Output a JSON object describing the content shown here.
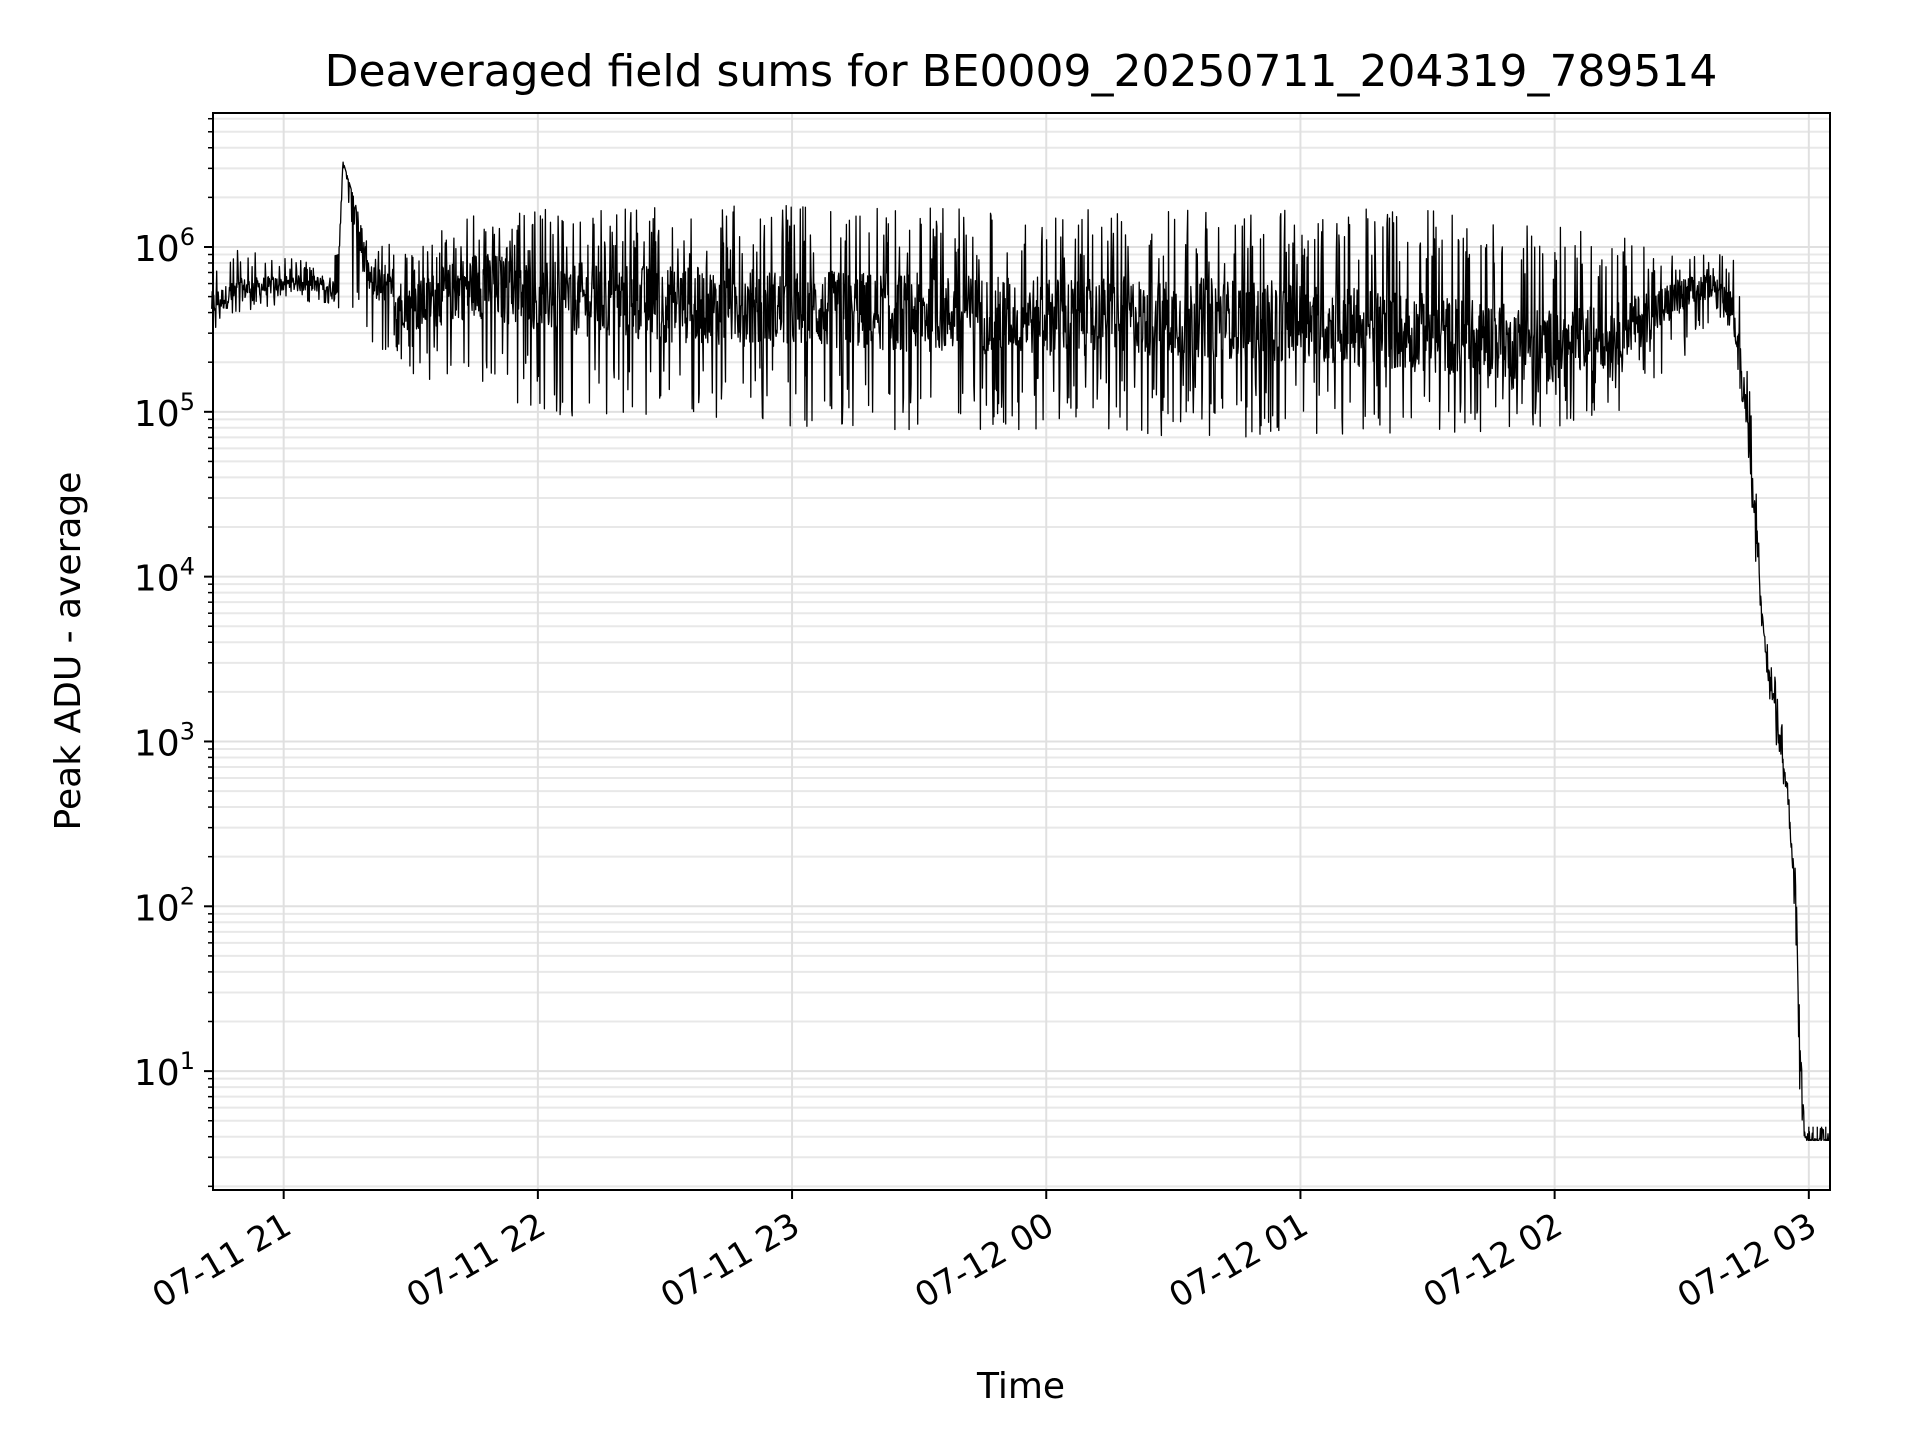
{
  "chart_data": {
    "type": "line",
    "title": "Deaveraged field sums for BE0009_20250711_204319_789514",
    "xlabel": "Time",
    "ylabel": "Peak ADU - average",
    "yscale": "log",
    "ylim": [
      1.9,
      6500000
    ],
    "xlim": [
      "2025-07-11 20:43:19",
      "2025-07-12 03:05:00"
    ],
    "grid": true,
    "line_color": "#000000",
    "x_ticks": [
      {
        "label": "07-11 21",
        "t": "2025-07-11 21:00"
      },
      {
        "label": "07-11 22",
        "t": "2025-07-11 22:00"
      },
      {
        "label": "07-11 23",
        "t": "2025-07-11 23:00"
      },
      {
        "label": "07-12 00",
        "t": "2025-07-12 00:00"
      },
      {
        "label": "07-12 01",
        "t": "2025-07-12 01:00"
      },
      {
        "label": "07-12 02",
        "t": "2025-07-12 02:00"
      },
      {
        "label": "07-12 03",
        "t": "2025-07-12 03:00"
      }
    ],
    "y_ticks": [
      {
        "base": "10",
        "exp": "1",
        "value": 10
      },
      {
        "base": "10",
        "exp": "2",
        "value": 100
      },
      {
        "base": "10",
        "exp": "3",
        "value": 1000
      },
      {
        "base": "10",
        "exp": "4",
        "value": 10000
      },
      {
        "base": "10",
        "exp": "5",
        "value": 100000
      },
      {
        "base": "10",
        "exp": "6",
        "value": 1000000
      }
    ],
    "series": [
      {
        "x": [
          "2025-07-11 20:43",
          "2025-07-11 20:50",
          "2025-07-11 21:00",
          "2025-07-11 21:10",
          "2025-07-11 21:13",
          "2025-07-11 21:14",
          "2025-07-11 21:20",
          "2025-07-11 21:30",
          "2025-07-11 21:45",
          "2025-07-11 22:00",
          "2025-07-11 22:30",
          "2025-07-11 23:00",
          "2025-07-11 23:30",
          "2025-07-12 00:00",
          "2025-07-12 00:30",
          "2025-07-12 01:00",
          "2025-07-12 01:30",
          "2025-07-12 02:00",
          "2025-07-12 02:15",
          "2025-07-12 02:30",
          "2025-07-12 02:38",
          "2025-07-12 02:42",
          "2025-07-12 02:45",
          "2025-07-12 02:48",
          "2025-07-12 02:50",
          "2025-07-12 02:52",
          "2025-07-12 02:55",
          "2025-07-12 02:57",
          "2025-07-12 02:58",
          "2025-07-12 02:59",
          "2025-07-12 03:00",
          "2025-07-12 03:05"
        ],
        "y": [
          450000,
          550000,
          600000,
          600000,
          520000,
          3300000,
          650000,
          420000,
          600000,
          500000,
          450000,
          420000,
          400000,
          380000,
          380000,
          350000,
          300000,
          250000,
          300000,
          500000,
          600000,
          450000,
          120000,
          15000,
          3000,
          1500,
          500,
          100,
          12,
          4,
          3.8,
          3.8
        ],
        "min": [
          300000,
          400000,
          450000,
          450000,
          280000,
          300000,
          280000,
          150000,
          110000,
          100000,
          80000,
          80000,
          75000,
          75000,
          70000,
          70000,
          70000,
          80000,
          100000,
          200000,
          400000,
          300000,
          80000,
          8000,
          2000,
          1000,
          300,
          50,
          4,
          3.8,
          3.8,
          3.8
        ],
        "max": [
          800000,
          1000000,
          850000,
          850000,
          900000,
          3300000,
          1000000,
          1100000,
          1600000,
          1700000,
          1800000,
          1800000,
          1750000,
          1700000,
          1700000,
          1700000,
          1700000,
          1400000,
          1200000,
          900000,
          900000,
          950000,
          300000,
          30000,
          4500,
          2500,
          800,
          150,
          20,
          4.5,
          4.5,
          4.5
        ]
      }
    ]
  }
}
